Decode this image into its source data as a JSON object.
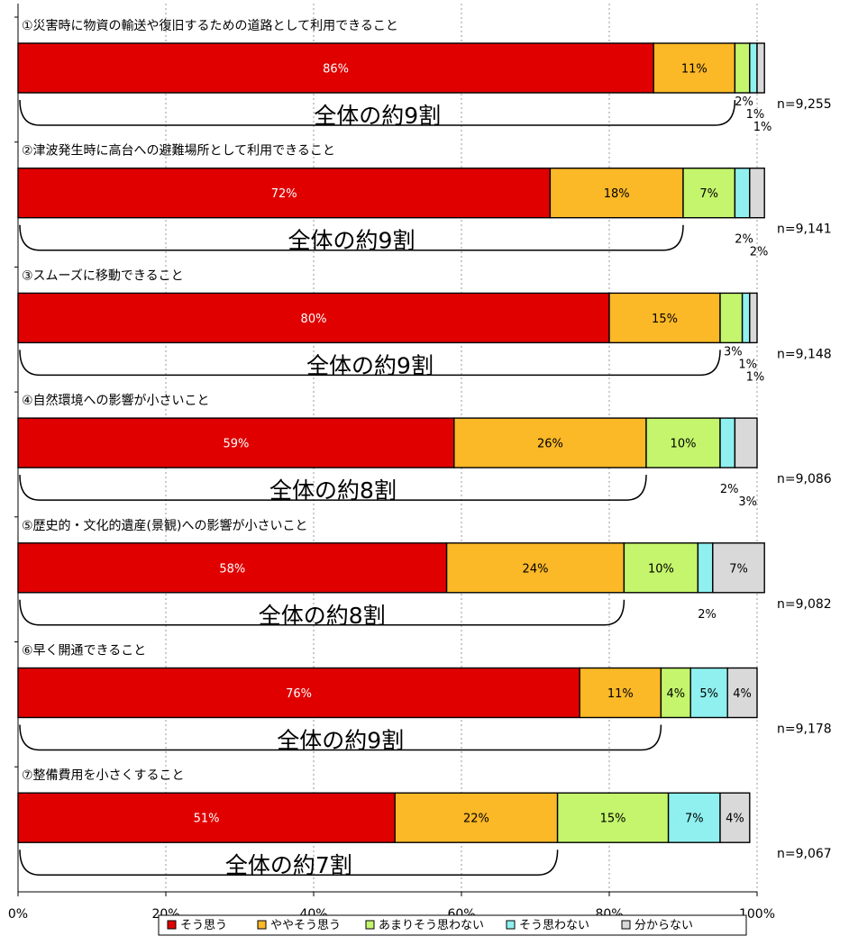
{
  "chart_data": {
    "type": "bar",
    "stacked": true,
    "orientation": "horizontal",
    "percent_scale": true,
    "xlim": [
      0,
      100
    ],
    "x_ticks": [
      "0%",
      "20%",
      "40%",
      "60%",
      "80%",
      "100%"
    ],
    "grid": "vertical dotted",
    "legend_position": "bottom",
    "series_colors": [
      "#e00000",
      "#fbb827",
      "#c4f56c",
      "#8ff0ef",
      "#d9d9d9"
    ],
    "legend": [
      "そう思う",
      "ややそう思う",
      "あまりそう思わない",
      "そう思わない",
      "分からない"
    ],
    "categories": [
      "①災害時に物資の輸送や復旧するための道路として利用できること",
      "②津波発生時に高台への避難場所として利用できること",
      "③スムーズに移動できること",
      "④自然環境への影響が小さいこと",
      "⑤歴史的・文化的遺産(景観)への影響が小さいこと",
      "⑥早く開通できること",
      "⑦整備費用を小さくすること"
    ],
    "values": [
      [
        86,
        11,
        2,
        1,
        1
      ],
      [
        72,
        18,
        7,
        2,
        2
      ],
      [
        80,
        15,
        3,
        1,
        1
      ],
      [
        59,
        26,
        10,
        2,
        3
      ],
      [
        58,
        24,
        10,
        2,
        7
      ],
      [
        76,
        11,
        4,
        5,
        4
      ],
      [
        51,
        22,
        15,
        7,
        4
      ]
    ],
    "segment_labels": [
      [
        "86%",
        "11%",
        "2%",
        "1%",
        "1%"
      ],
      [
        "72%",
        "18%",
        "7%",
        "2%",
        "2%"
      ],
      [
        "80%",
        "15%",
        "3%",
        "1%",
        "1%"
      ],
      [
        "59%",
        "26%",
        "10%",
        "2%",
        "3%"
      ],
      [
        "58%",
        "24%",
        "10%",
        "2%",
        "7%"
      ],
      [
        "76%",
        "11%",
        "4%",
        "5%",
        "4%"
      ],
      [
        "51%",
        "22%",
        "15%",
        "7%",
        "4%"
      ]
    ],
    "sample_sizes": [
      "n=9,255",
      "n=9,141",
      "n=9,148",
      "n=9,086",
      "n=9,082",
      "n=9,178",
      "n=9,067"
    ],
    "annotations": [
      "全体の約9割",
      "全体の約9割",
      "全体の約9割",
      "全体の約8割",
      "全体の約8割",
      "全体の約9割",
      "全体の約7割"
    ],
    "annotation_spans": [
      97,
      90,
      95,
      85,
      82,
      87,
      73
    ]
  }
}
